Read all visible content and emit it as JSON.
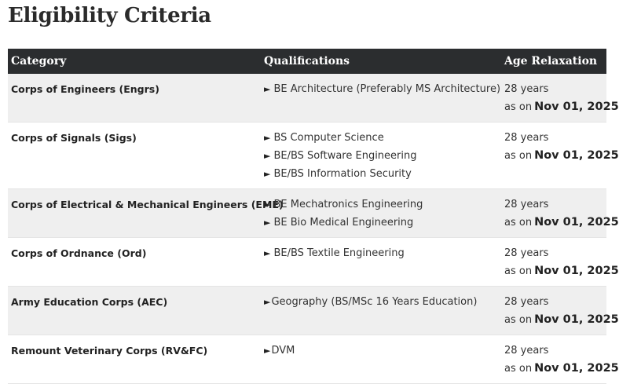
{
  "page": {
    "title": "Eligibility Criteria"
  },
  "table": {
    "headers": {
      "category": "Category",
      "qualifications": "Qualifications",
      "age_relaxation": "Age Relaxation"
    },
    "rows": [
      {
        "category": "Corps of Engineers (Engrs)",
        "qualifications": [
          "BE Architecture (Preferably MS Architecture)"
        ],
        "age_years": "28 years",
        "age_as_on": "as on",
        "age_date": "Nov 01, 2025"
      },
      {
        "category": "Corps of Signals (Sigs)",
        "qualifications": [
          "BS Computer Science",
          "BE/BS Software Engineering",
          "BE/BS Information Security"
        ],
        "age_years": "28 years",
        "age_as_on": "as on",
        "age_date": "Nov 01, 2025"
      },
      {
        "category": "Corps of Electrical & Mechanical Engineers (EME)",
        "qualifications": [
          "BE Mechatronics Engineering",
          "BE Bio Medical Engineering"
        ],
        "age_years": "28 years",
        "age_as_on": "as on",
        "age_date": "Nov 01, 2025"
      },
      {
        "category": "Corps of Ordnance (Ord)",
        "qualifications": [
          "BE/BS Textile Engineering"
        ],
        "age_years": "28 years",
        "age_as_on": "as on",
        "age_date": "Nov 01, 2025"
      },
      {
        "category": "Army Education Corps (AEC)",
        "qualifications": [
          "Geography (BS/MSc 16 Years Education)"
        ],
        "age_years": "28 years",
        "age_as_on": "as on",
        "age_date": "Nov 01, 2025"
      },
      {
        "category": "Remount Veterinary Corps (RV&FC)",
        "qualifications": [
          "DVM"
        ],
        "age_years": "28 years",
        "age_as_on": "as on",
        "age_date": "Nov 01, 2025"
      }
    ]
  },
  "icons": {
    "bullet": "right-pointer-arrow-icon"
  },
  "colors": {
    "header_bg": "#2b2d2f",
    "header_text": "#ffffff",
    "row_alt": "#efefef"
  }
}
